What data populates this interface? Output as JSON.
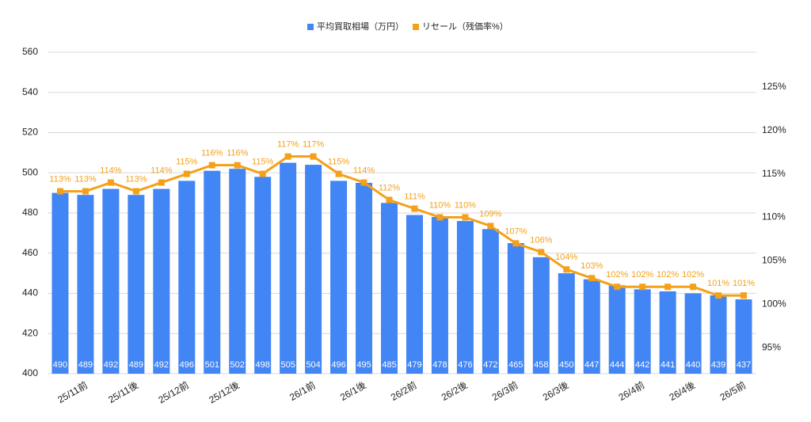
{
  "chart_data": {
    "type": "bar_line",
    "categories": [
      null,
      "25/11前",
      null,
      "25/11後",
      null,
      "25/12前",
      null,
      "25/12後",
      null,
      null,
      "26/1前",
      null,
      "26/1後",
      null,
      "26/2前",
      null,
      "26/2後",
      null,
      "26/3前",
      null,
      "26/3後",
      null,
      null,
      "26/4前",
      null,
      "26/4後",
      null,
      "26/5前"
    ],
    "series": [
      {
        "name": "平均買取相場（万円）",
        "color": "#4285f4",
        "type": "bar",
        "values": [
          490,
          489,
          492,
          489,
          492,
          496,
          501,
          502,
          498,
          505,
          504,
          496,
          495,
          485,
          479,
          478,
          476,
          472,
          465,
          458,
          450,
          447,
          444,
          442,
          441,
          440,
          439,
          437
        ]
      },
      {
        "name": "リセール（残価率%）",
        "color": "#f4a018",
        "type": "line",
        "axis": "y2",
        "values": [
          113,
          113,
          114,
          113,
          114,
          115,
          116,
          116,
          115,
          117,
          117,
          115,
          114,
          112,
          111,
          110,
          110,
          109,
          107,
          106,
          104,
          103,
          102,
          102,
          102,
          102,
          101,
          101
        ],
        "value_labels": [
          "113%",
          "113%",
          "114%",
          "113%",
          "114%",
          "115%",
          "116%",
          "116%",
          "115%",
          "117%",
          "117%",
          "115%",
          "114%",
          "112%",
          "111%",
          "110%",
          "110%",
          "109%",
          "107%",
          "106%",
          "104%",
          "103%",
          "102%",
          "102%",
          "102%",
          "102%",
          "101%",
          "101%"
        ]
      }
    ],
    "ylim": [
      400,
      560
    ],
    "yticks": [
      400,
      420,
      440,
      460,
      480,
      500,
      520,
      540,
      560
    ],
    "y2lim": [
      92,
      129
    ],
    "y2ticks": [
      {
        "value": 95,
        "label": "95%"
      },
      {
        "value": 100,
        "label": "100%"
      },
      {
        "value": 105,
        "label": "105%"
      },
      {
        "value": 110,
        "label": "110%"
      },
      {
        "value": 115,
        "label": "115%"
      },
      {
        "value": 120,
        "label": "120%"
      },
      {
        "value": 125,
        "label": "125%"
      }
    ],
    "grid": true,
    "legend": "top"
  }
}
